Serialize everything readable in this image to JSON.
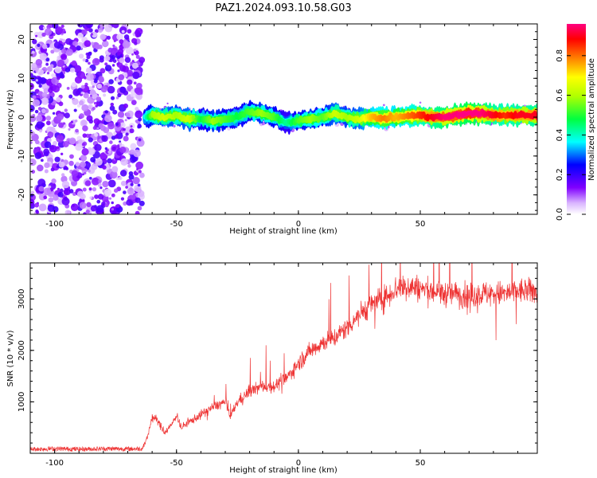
{
  "title": "PAZ1.2024.093.10.58.G03",
  "chart_data": [
    {
      "type": "heatmap",
      "xlabel": "Height of straight line (km)",
      "ylabel": "Frequency (Hz)",
      "xlim": [
        -110,
        98
      ],
      "ylim": [
        -25,
        24
      ],
      "x_ticks": [
        -100,
        -50,
        0,
        50
      ],
      "x_tick_labels": [
        "-100",
        "-50",
        "0",
        "50"
      ],
      "y_ticks": [
        -20,
        -10,
        0,
        10,
        20
      ],
      "y_tick_labels": [
        "-20",
        "-10",
        "0",
        "10",
        "20"
      ],
      "colorbar": {
        "label": "Normalized spectral amplitude",
        "range": [
          0,
          0.96
        ],
        "ticks": [
          0,
          0.2,
          0.4,
          0.6,
          0.8
        ],
        "tick_labels": [
          "0.0",
          "0.2",
          "0.4",
          "0.6",
          "0.8"
        ],
        "colormap": "gist_rainbow_r"
      },
      "noise_region_x": [
        -110,
        -64
      ],
      "noise_level": 0.15,
      "ridge": [
        {
          "x": -63,
          "f": 0.0,
          "amp": 0.35
        },
        {
          "x": -60,
          "f": 0.5,
          "amp": 0.55
        },
        {
          "x": -55,
          "f": 0.0,
          "amp": 0.6
        },
        {
          "x": -50,
          "f": 0.5,
          "amp": 0.55
        },
        {
          "x": -45,
          "f": -0.5,
          "amp": 0.6
        },
        {
          "x": -40,
          "f": -0.5,
          "amp": 0.45
        },
        {
          "x": -35,
          "f": -1.0,
          "amp": 0.55
        },
        {
          "x": -30,
          "f": -0.5,
          "amp": 0.5
        },
        {
          "x": -25,
          "f": 0.0,
          "amp": 0.45
        },
        {
          "x": -20,
          "f": 1.5,
          "amp": 0.5
        },
        {
          "x": -15,
          "f": 1.0,
          "amp": 0.55
        },
        {
          "x": -10,
          "f": 0.0,
          "amp": 0.5
        },
        {
          "x": -5,
          "f": -1.5,
          "amp": 0.4
        },
        {
          "x": 0,
          "f": -1.0,
          "amp": 0.5
        },
        {
          "x": 5,
          "f": -0.5,
          "amp": 0.55
        },
        {
          "x": 10,
          "f": 0.0,
          "amp": 0.5
        },
        {
          "x": 15,
          "f": 1.0,
          "amp": 0.6
        },
        {
          "x": 20,
          "f": 0.0,
          "amp": 0.55
        },
        {
          "x": 25,
          "f": -0.5,
          "amp": 0.6
        },
        {
          "x": 30,
          "f": 0.0,
          "amp": 0.7
        },
        {
          "x": 35,
          "f": -0.3,
          "amp": 0.75
        },
        {
          "x": 40,
          "f": 0.0,
          "amp": 0.7
        },
        {
          "x": 45,
          "f": 0.3,
          "amp": 0.75
        },
        {
          "x": 50,
          "f": 0.5,
          "amp": 0.8
        },
        {
          "x": 55,
          "f": 0.0,
          "amp": 0.85
        },
        {
          "x": 60,
          "f": 0.0,
          "amp": 0.9
        },
        {
          "x": 65,
          "f": 0.5,
          "amp": 0.9
        },
        {
          "x": 70,
          "f": 1.0,
          "amp": 0.95
        },
        {
          "x": 75,
          "f": 1.0,
          "amp": 0.9
        },
        {
          "x": 80,
          "f": 0.5,
          "amp": 0.85
        },
        {
          "x": 85,
          "f": 0.5,
          "amp": 0.8
        },
        {
          "x": 90,
          "f": 0.5,
          "amp": 0.85
        },
        {
          "x": 98,
          "f": 0.5,
          "amp": 0.85
        }
      ]
    },
    {
      "type": "line",
      "xlabel": "Height of straight line (km)",
      "ylabel": "SNR (10 * v/v)",
      "xlim": [
        -110,
        98
      ],
      "ylim": [
        0,
        3700
      ],
      "x_ticks": [
        -100,
        -50,
        0,
        50
      ],
      "x_tick_labels": [
        "-100",
        "-50",
        "0",
        "50"
      ],
      "y_ticks": [
        1000,
        2000,
        3000
      ],
      "y_tick_labels": [
        "1000",
        "2000",
        "3000"
      ],
      "series": [
        {
          "color": "#ee3333",
          "x": [
            -110,
            -100,
            -90,
            -80,
            -70,
            -64,
            -62,
            -60,
            -58,
            -55,
            -52,
            -50,
            -48,
            -45,
            -40,
            -35,
            -30,
            -28,
            -25,
            -20,
            -15,
            -10,
            -5,
            0,
            5,
            10,
            15,
            20,
            25,
            30,
            35,
            40,
            45,
            50,
            55,
            60,
            65,
            70,
            75,
            80,
            85,
            90,
            98
          ],
          "y": [
            80,
            90,
            80,
            90,
            85,
            90,
            300,
            700,
            650,
            400,
            550,
            750,
            500,
            600,
            750,
            900,
            1000,
            700,
            1000,
            1200,
            1300,
            1300,
            1450,
            1750,
            2000,
            2150,
            2250,
            2450,
            2700,
            2900,
            3000,
            3200,
            3250,
            3200,
            3150,
            3100,
            3100,
            3050,
            3100,
            3100,
            3100,
            3150,
            3150
          ]
        }
      ]
    }
  ]
}
